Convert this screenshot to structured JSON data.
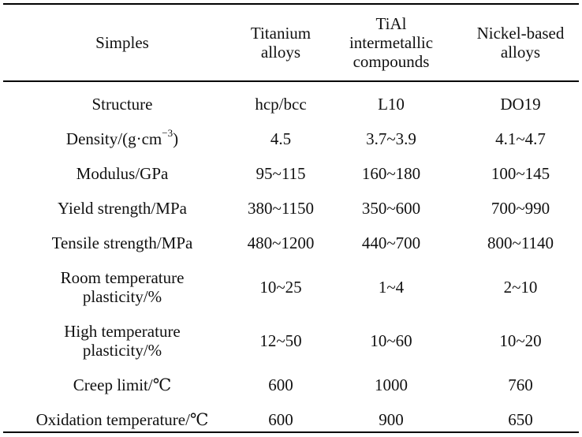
{
  "table": {
    "header": [
      "Simples",
      "Titanium\nalloys",
      "TiAl\nintermetallic\ncompounds",
      "Nickel-based\nalloys"
    ],
    "rows": [
      {
        "property": "Structure",
        "values": [
          "hcp/bcc",
          "L10",
          "DO19"
        ]
      },
      {
        "property_parts": [
          "Density/(g·cm",
          "−3",
          ")"
        ],
        "values": [
          "4.5",
          "3.7~3.9",
          "4.1~4.7"
        ]
      },
      {
        "property": "Modulus/GPa",
        "values": [
          "95~115",
          "160~180",
          "100~145"
        ]
      },
      {
        "property": "Yield strength/MPa",
        "values": [
          "380~1150",
          "350~600",
          "700~990"
        ]
      },
      {
        "property": "Tensile strength/MPa",
        "values": [
          "480~1200",
          "440~700",
          "800~1140"
        ]
      },
      {
        "property_lines": [
          "Room temperature",
          "plasticity/%"
        ],
        "values": [
          "10~25",
          "1~4",
          "2~10"
        ]
      },
      {
        "property_lines": [
          "High temperature",
          "plasticity/%"
        ],
        "values": [
          "12~50",
          "10~60",
          "10~20"
        ]
      },
      {
        "property": "Creep limit/℃",
        "values": [
          "600",
          "1000",
          "760"
        ]
      },
      {
        "property": "Oxidation temperature/℃",
        "values": [
          "600",
          "900",
          "650"
        ]
      }
    ]
  }
}
